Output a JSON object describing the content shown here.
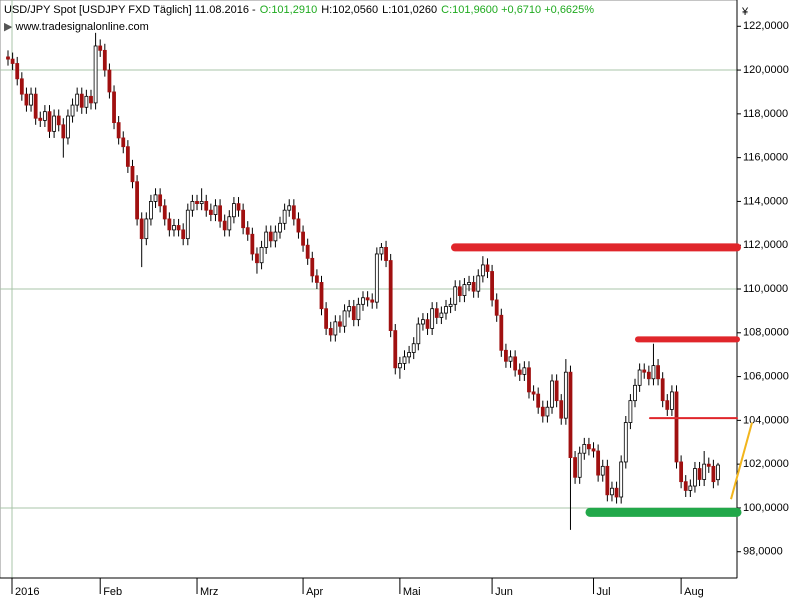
{
  "chart_data": {
    "type": "candlestick",
    "title": "USD/JPY Spot [USDJPY FXD  Täglich] 11.08.2016 -",
    "title_values": [
      {
        "text": "O:101,2910",
        "color": "#1faa1f"
      },
      {
        "text": "H:102,0560",
        "color": "#000000"
      },
      {
        "text": "L:101,0260",
        "color": "#000000"
      },
      {
        "text": "C:101,9600 +0,6710 +0,6625%",
        "color": "#1faa1f"
      }
    ],
    "source": "www.tradesignalonline.com",
    "y_unit": "¥",
    "categories": [
      "2016",
      null,
      null,
      null,
      null,
      null,
      null,
      null,
      null,
      null,
      null,
      null,
      null,
      null,
      null,
      null,
      null,
      null,
      null,
      null,
      "Feb",
      null,
      null,
      null,
      null,
      null,
      null,
      null,
      null,
      null,
      null,
      null,
      null,
      null,
      null,
      null,
      null,
      null,
      null,
      null,
      null,
      "Mrz",
      null,
      null,
      null,
      null,
      null,
      null,
      null,
      null,
      null,
      null,
      null,
      null,
      null,
      null,
      null,
      null,
      null,
      null,
      null,
      null,
      null,
      null,
      "Apr",
      null,
      null,
      null,
      null,
      null,
      null,
      null,
      null,
      null,
      null,
      null,
      null,
      null,
      null,
      null,
      null,
      null,
      null,
      null,
      null,
      "Mai",
      null,
      null,
      null,
      null,
      null,
      null,
      null,
      null,
      null,
      null,
      null,
      null,
      null,
      null,
      null,
      null,
      null,
      null,
      null,
      "Jun",
      null,
      null,
      null,
      null,
      null,
      null,
      null,
      null,
      null,
      null,
      null,
      null,
      null,
      null,
      null,
      null,
      null,
      null,
      null,
      null,
      null,
      "Jul",
      null,
      null,
      null,
      null,
      null,
      null,
      null,
      null,
      null,
      null,
      null,
      null,
      null,
      null,
      null,
      null,
      null,
      null,
      "Aug",
      null,
      null,
      null,
      null,
      null,
      null,
      null,
      null
    ],
    "open": [
      120.6,
      120.5,
      120.3,
      119.6,
      118.9,
      118.4,
      118.9,
      117.8,
      117.7,
      118.1,
      117.2,
      117.9,
      117.5,
      116.9,
      117.9,
      118.4,
      118.9,
      118.3,
      118.8,
      118.5,
      121.1,
      120.9,
      120.0,
      119.0,
      117.6,
      116.9,
      116.5,
      115.6,
      114.9,
      113.2,
      112.3,
      113.2,
      114.0,
      114.3,
      113.8,
      113.2,
      112.7,
      112.9,
      112.7,
      112.3,
      113.6,
      114.0,
      113.9,
      114.0,
      113.6,
      113.4,
      113.8,
      113.1,
      112.7,
      113.3,
      113.9,
      113.6,
      112.8,
      112.5,
      111.6,
      111.2,
      111.9,
      112.6,
      112.2,
      112.6,
      113.0,
      113.6,
      113.8,
      113.2,
      112.6,
      112.0,
      111.4,
      110.6,
      110.3,
      109.1,
      108.2,
      107.9,
      108.5,
      108.3,
      109.0,
      109.2,
      108.6,
      109.3,
      109.6,
      109.5,
      109.4,
      111.6,
      111.9,
      111.3,
      108.1,
      106.4,
      106.6,
      106.9,
      107.1,
      107.5,
      108.4,
      108.6,
      108.2,
      109.1,
      108.7,
      108.9,
      109.2,
      109.3,
      110.1,
      109.7,
      110.2,
      110.3,
      109.9,
      110.6,
      111.1,
      110.8,
      109.5,
      108.8,
      107.2,
      106.7,
      106.9,
      106.3,
      106.1,
      106.4,
      105.3,
      105.2,
      104.6,
      104.2,
      104.6,
      105.8,
      104.9,
      104.1,
      106.2,
      102.3,
      101.4,
      102.5,
      102.9,
      102.7,
      102.6,
      101.5,
      101.9,
      100.6,
      100.9,
      100.5,
      102.1,
      103.9,
      104.9,
      105.6,
      106.3,
      106.2,
      105.9,
      106.5,
      105.9,
      104.9,
      104.5,
      105.3,
      102.1,
      101.2,
      100.8,
      101.0,
      101.8,
      101.3,
      102.0,
      101.9,
      101.291
    ],
    "high": [
      120.9,
      120.8,
      120.6,
      119.9,
      119.2,
      119.2,
      119.2,
      118.1,
      118.4,
      118.4,
      118.2,
      118.2,
      117.8,
      118.2,
      118.7,
      119.2,
      119.2,
      119.1,
      119.1,
      121.7,
      121.4,
      121.2,
      120.3,
      119.3,
      117.9,
      117.2,
      116.8,
      115.9,
      115.2,
      113.5,
      113.5,
      114.3,
      114.6,
      114.6,
      114.1,
      113.5,
      113.2,
      113.2,
      113.0,
      113.9,
      114.3,
      114.3,
      114.6,
      114.3,
      113.9,
      114.1,
      114.1,
      113.4,
      113.6,
      114.2,
      114.2,
      113.9,
      113.1,
      112.8,
      111.9,
      112.2,
      112.9,
      112.9,
      112.9,
      113.3,
      113.9,
      114.1,
      114.1,
      113.5,
      112.9,
      112.3,
      111.7,
      110.9,
      110.6,
      109.4,
      108.5,
      108.8,
      108.8,
      109.3,
      109.5,
      109.5,
      109.6,
      109.9,
      109.9,
      109.8,
      111.9,
      112.1,
      112.2,
      111.6,
      108.4,
      106.9,
      107.2,
      107.4,
      107.8,
      108.7,
      108.9,
      108.9,
      109.4,
      109.4,
      109.2,
      109.5,
      109.6,
      110.4,
      110.4,
      110.5,
      110.6,
      110.6,
      110.9,
      111.5,
      111.4,
      111.1,
      109.8,
      109.1,
      107.5,
      107.2,
      107.2,
      106.6,
      106.7,
      106.7,
      105.6,
      105.5,
      104.9,
      104.9,
      106.1,
      106.1,
      105.2,
      106.8,
      106.5,
      102.6,
      102.8,
      103.2,
      103.2,
      103.0,
      102.9,
      102.2,
      102.2,
      101.2,
      101.2,
      102.4,
      104.2,
      105.2,
      105.9,
      106.6,
      106.6,
      106.5,
      107.5,
      106.8,
      106.2,
      105.2,
      105.6,
      105.6,
      102.4,
      101.5,
      101.3,
      102.1,
      102.1,
      102.6,
      102.3,
      102.2,
      102.056
    ],
    "low": [
      120.2,
      120.0,
      119.3,
      118.6,
      118.1,
      118.1,
      117.5,
      117.4,
      117.4,
      116.9,
      116.9,
      117.2,
      116.0,
      116.6,
      117.6,
      118.1,
      118.0,
      118.0,
      118.2,
      118.2,
      120.6,
      119.7,
      118.7,
      117.3,
      116.6,
      116.2,
      115.3,
      114.6,
      112.9,
      111.0,
      112.0,
      112.9,
      113.7,
      113.5,
      112.9,
      112.4,
      112.4,
      112.4,
      112.0,
      112.0,
      113.3,
      113.6,
      113.6,
      113.3,
      113.1,
      113.1,
      112.8,
      112.4,
      112.4,
      113.0,
      113.3,
      112.5,
      112.2,
      111.3,
      110.7,
      110.9,
      111.6,
      111.9,
      111.9,
      112.3,
      112.7,
      113.3,
      112.9,
      112.3,
      111.7,
      111.1,
      110.3,
      110.0,
      108.8,
      107.9,
      107.6,
      107.6,
      108.0,
      108.0,
      108.7,
      108.3,
      108.3,
      109.0,
      109.2,
      109.1,
      109.1,
      111.3,
      111.0,
      107.8,
      106.1,
      105.9,
      106.3,
      106.6,
      106.8,
      107.2,
      108.1,
      107.9,
      107.9,
      108.4,
      108.4,
      108.6,
      108.9,
      109.0,
      109.4,
      109.4,
      109.9,
      109.6,
      109.6,
      110.3,
      110.5,
      109.2,
      108.5,
      106.9,
      106.4,
      106.4,
      106.0,
      105.8,
      105.8,
      105.0,
      104.9,
      104.3,
      103.9,
      103.9,
      104.3,
      104.6,
      103.8,
      103.8,
      99.0,
      101.1,
      101.1,
      102.2,
      102.4,
      102.3,
      101.2,
      101.2,
      100.3,
      100.3,
      100.2,
      100.2,
      101.8,
      103.6,
      104.6,
      105.3,
      105.9,
      105.6,
      105.6,
      105.6,
      104.6,
      104.2,
      104.2,
      101.8,
      100.9,
      100.5,
      100.5,
      100.7,
      101.0,
      101.0,
      101.6,
      100.9,
      101.026
    ],
    "close": [
      120.5,
      120.3,
      119.6,
      118.9,
      118.4,
      118.9,
      117.8,
      117.7,
      118.1,
      117.2,
      117.9,
      117.5,
      116.9,
      117.9,
      118.4,
      118.9,
      118.3,
      118.8,
      118.5,
      121.1,
      120.9,
      120.0,
      119.0,
      117.6,
      116.9,
      116.5,
      115.6,
      114.9,
      113.2,
      112.3,
      113.2,
      114.0,
      114.3,
      113.8,
      113.2,
      112.7,
      112.9,
      112.7,
      112.3,
      113.6,
      114.0,
      113.9,
      114.0,
      113.6,
      113.4,
      113.8,
      113.1,
      112.7,
      113.3,
      113.9,
      113.6,
      112.8,
      112.5,
      111.6,
      111.2,
      111.9,
      112.6,
      112.2,
      112.6,
      113.0,
      113.6,
      113.8,
      113.2,
      112.6,
      112.0,
      111.4,
      110.6,
      110.3,
      109.1,
      108.2,
      107.9,
      108.5,
      108.3,
      109.0,
      109.2,
      108.6,
      109.3,
      109.6,
      109.5,
      109.4,
      111.6,
      111.9,
      111.3,
      108.1,
      106.4,
      106.6,
      106.9,
      107.1,
      107.5,
      108.4,
      108.6,
      108.2,
      109.1,
      108.7,
      108.9,
      109.2,
      109.3,
      110.1,
      109.7,
      110.2,
      110.3,
      109.9,
      110.6,
      111.1,
      110.8,
      109.5,
      108.8,
      107.2,
      106.7,
      106.9,
      106.3,
      106.1,
      106.4,
      105.3,
      105.2,
      104.6,
      104.2,
      104.6,
      105.8,
      104.9,
      104.1,
      106.2,
      102.3,
      101.4,
      102.5,
      102.9,
      102.7,
      102.6,
      101.5,
      101.9,
      100.6,
      100.9,
      100.5,
      102.1,
      103.9,
      104.9,
      105.6,
      106.3,
      106.2,
      105.9,
      106.5,
      105.9,
      104.9,
      104.5,
      105.3,
      102.1,
      101.2,
      100.8,
      101.0,
      101.8,
      101.3,
      102.0,
      101.9,
      101.2,
      101.96
    ],
    "up_color": "#ffffff",
    "down_color": "#a01010",
    "ylim": [
      96.8,
      123.2
    ],
    "yticks": [
      {
        "value": 98,
        "label": "98,0000"
      },
      {
        "value": 100,
        "label": "100,0000"
      },
      {
        "value": 102,
        "label": "102,0000"
      },
      {
        "value": 104,
        "label": "104,0000"
      },
      {
        "value": 106,
        "label": "106,0000"
      },
      {
        "value": 108,
        "label": "108,0000"
      },
      {
        "value": 110,
        "label": "110,0000"
      },
      {
        "value": 112,
        "label": "112,0000"
      },
      {
        "value": 114,
        "label": "114,0000"
      },
      {
        "value": 116,
        "label": "116,0000"
      },
      {
        "value": 118,
        "label": "118,0000"
      },
      {
        "value": 120,
        "label": "120,0000"
      },
      {
        "value": 122,
        "label": "122,0000"
      }
    ],
    "ygrid": [
      100,
      110,
      120
    ],
    "levels": [
      {
        "value": 111.9,
        "color": "#e0262b"
      },
      {
        "value": 107.7,
        "color": "#e0262b"
      },
      {
        "value": 104.1,
        "color": "#e0262b"
      },
      {
        "value": 99.8,
        "color": "#22a84a"
      }
    ],
    "trend_line": {
      "values": [
        100.4,
        103.9
      ],
      "color": "#f2b51c"
    }
  }
}
